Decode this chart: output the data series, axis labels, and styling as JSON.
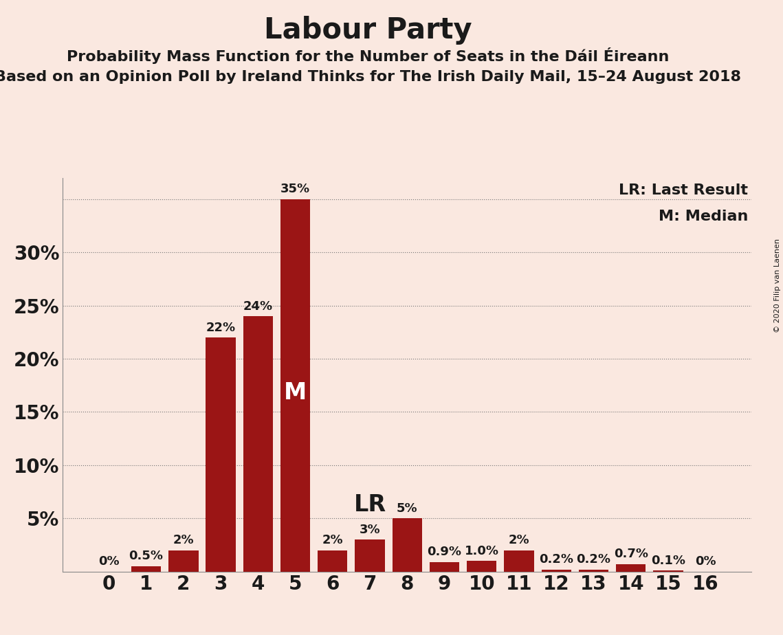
{
  "title": "Labour Party",
  "subtitle1": "Probability Mass Function for the Number of Seats in the Dáil Éireann",
  "subtitle2": "Based on an Opinion Poll by Ireland Thinks for The Irish Daily Mail, 15–24 August 2018",
  "copyright": "© 2020 Filip van Laenen",
  "categories": [
    0,
    1,
    2,
    3,
    4,
    5,
    6,
    7,
    8,
    9,
    10,
    11,
    12,
    13,
    14,
    15,
    16
  ],
  "values": [
    0.0,
    0.5,
    2.0,
    22.0,
    24.0,
    35.0,
    2.0,
    3.0,
    5.0,
    0.9,
    1.0,
    2.0,
    0.2,
    0.2,
    0.7,
    0.1,
    0.0
  ],
  "labels": [
    "0%",
    "0.5%",
    "2%",
    "22%",
    "24%",
    "35%",
    "2%",
    "3%",
    "5%",
    "0.9%",
    "1.0%",
    "2%",
    "0.2%",
    "0.2%",
    "0.7%",
    "0.1%",
    "0%"
  ],
  "bar_color": "#9B1515",
  "background_color": "#FAE8E0",
  "text_color": "#1a1a1a",
  "ylim": [
    0,
    37
  ],
  "yticks": [
    5,
    10,
    15,
    20,
    25,
    30
  ],
  "ytick_labels": [
    "5%",
    "10%",
    "15%",
    "20%",
    "25%",
    "30%"
  ],
  "grid_ticks": [
    5,
    10,
    15,
    20,
    25,
    30,
    35
  ],
  "median_bar": 5,
  "lr_bar": 7,
  "legend_lr": "LR: Last Result",
  "legend_m": "M: Median",
  "median_label": "M",
  "lr_label": "LR",
  "title_fontsize": 30,
  "subtitle_fontsize": 16,
  "label_fontsize": 13,
  "tick_fontsize": 20,
  "annotation_fontsize": 24
}
